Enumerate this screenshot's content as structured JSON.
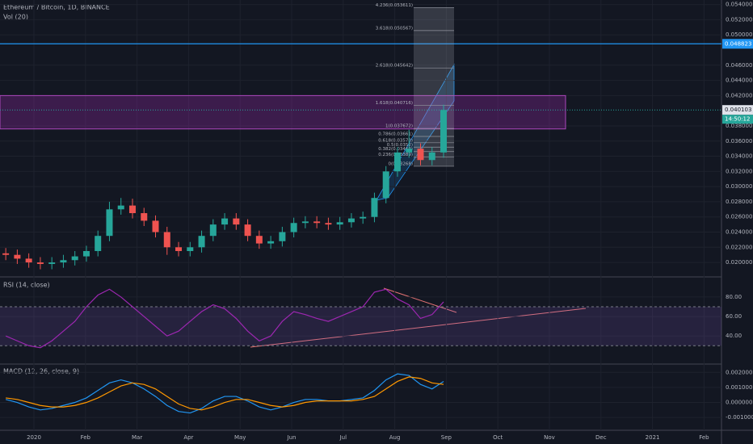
{
  "chart_data": {
    "type": "candlestick",
    "title": "Ethereum / Bitcoin, 1D, BINANCE",
    "volume_label": "Vol (20)",
    "open": [
      0.0212,
      0.021,
      0.0205,
      0.02,
      0.0198,
      0.02,
      0.0203,
      0.0208,
      0.0215,
      0.0235,
      0.027,
      0.0275,
      0.0265,
      0.0255,
      0.024,
      0.022,
      0.0215,
      0.022,
      0.0235,
      0.025,
      0.0258,
      0.025,
      0.0235,
      0.0225,
      0.0228,
      0.024,
      0.0252,
      0.0254,
      0.0252,
      0.025,
      0.0253,
      0.0258,
      0.026,
      0.0285,
      0.032,
      0.0345,
      0.035,
      0.0335,
      0.0345
    ],
    "high": [
      0.0219,
      0.0217,
      0.0212,
      0.0207,
      0.0207,
      0.021,
      0.0215,
      0.0222,
      0.0242,
      0.028,
      0.0285,
      0.0284,
      0.0272,
      0.0262,
      0.0247,
      0.0227,
      0.0227,
      0.0242,
      0.0257,
      0.0265,
      0.0265,
      0.0257,
      0.0242,
      0.0235,
      0.0247,
      0.0259,
      0.0261,
      0.0261,
      0.0259,
      0.026,
      0.0265,
      0.0267,
      0.0292,
      0.0327,
      0.0352,
      0.0375,
      0.0357,
      0.0352,
      0.0408
    ],
    "low": [
      0.0203,
      0.0198,
      0.0193,
      0.0191,
      0.0191,
      0.0193,
      0.0196,
      0.0201,
      0.0208,
      0.0228,
      0.0263,
      0.0258,
      0.0248,
      0.0233,
      0.021,
      0.0208,
      0.0208,
      0.0213,
      0.0228,
      0.0243,
      0.0243,
      0.0228,
      0.0218,
      0.0218,
      0.0221,
      0.0233,
      0.0245,
      0.0245,
      0.0243,
      0.0243,
      0.0246,
      0.0251,
      0.0253,
      0.0278,
      0.0313,
      0.0338,
      0.0328,
      0.0328,
      0.0338
    ],
    "close": [
      0.021,
      0.0205,
      0.02,
      0.0198,
      0.02,
      0.0203,
      0.0208,
      0.0215,
      0.0235,
      0.027,
      0.0275,
      0.0265,
      0.0255,
      0.024,
      0.022,
      0.0215,
      0.022,
      0.0235,
      0.025,
      0.0258,
      0.025,
      0.0235,
      0.0225,
      0.0228,
      0.024,
      0.0252,
      0.0254,
      0.0252,
      0.025,
      0.0253,
      0.0258,
      0.026,
      0.0285,
      0.032,
      0.0345,
      0.035,
      0.0335,
      0.0345,
      0.0401
    ],
    "up_color": "#26a69a",
    "down_color": "#ef5350",
    "ylim": [
      0.0182,
      0.0546
    ],
    "yticks": [
      {
        "value": 0.02,
        "label": "0.020000"
      },
      {
        "value": 0.022,
        "label": "0.022000"
      },
      {
        "value": 0.024,
        "label": "0.024000"
      },
      {
        "value": 0.026,
        "label": "0.026000"
      },
      {
        "value": 0.028,
        "label": "0.028000"
      },
      {
        "value": 0.03,
        "label": "0.030000"
      },
      {
        "value": 0.032,
        "label": "0.032000"
      },
      {
        "value": 0.034,
        "label": "0.034000"
      },
      {
        "value": 0.036,
        "label": "0.036000"
      },
      {
        "value": 0.038,
        "label": "0.038000"
      },
      {
        "value": 0.042,
        "label": "0.042000"
      },
      {
        "value": 0.044,
        "label": "0.044000"
      },
      {
        "value": 0.046,
        "label": "0.046000"
      },
      {
        "value": 0.05,
        "label": "0.050000"
      },
      {
        "value": 0.052,
        "label": "0.052000"
      },
      {
        "value": 0.054,
        "label": "0.054000"
      }
    ],
    "resistance": 0.048823,
    "last_price": 0.040103,
    "countdown": "14:50:12",
    "zone": [
      0.0376,
      0.042
    ],
    "fib_levels": [
      {
        "value": 0.053611,
        "label": "4.236(0.053611)"
      },
      {
        "value": 0.050567,
        "label": "3.618(0.050567)"
      },
      {
        "value": 0.045642,
        "label": "2.618(0.045642)"
      },
      {
        "value": 0.040716,
        "label": "1.618(0.040716)"
      },
      {
        "value": 0.037672,
        "label": "1(0.037672)"
      },
      {
        "value": 0.03661,
        "label": "0.786(0.03661)"
      },
      {
        "value": 0.03578,
        "label": "0.618(0.03578)"
      },
      {
        "value": 0.0352,
        "label": "0.5(0.0352)"
      },
      {
        "value": 0.03462,
        "label": "0.382(0.03462)"
      },
      {
        "value": 0.03389,
        "label": "0.236(0.03389)"
      },
      {
        "value": 0.03268,
        "label": "0(0.03268)"
      }
    ],
    "months": [
      "2020",
      "Feb",
      "Mar",
      "Apr",
      "May",
      "Jun",
      "Jul",
      "Aug",
      "Sep",
      "Oct",
      "Nov",
      "Dec",
      "2021",
      "Feb"
    ],
    "rsi": {
      "label": "RSI (14, close)",
      "color": "#9c27b0",
      "values": [
        40,
        35,
        30,
        28,
        35,
        45,
        55,
        70,
        82,
        88,
        80,
        70,
        60,
        50,
        40,
        45,
        55,
        65,
        72,
        68,
        58,
        45,
        35,
        40,
        55,
        65,
        62,
        58,
        55,
        60,
        65,
        70,
        85,
        88,
        78,
        72,
        58,
        62,
        75
      ],
      "ylim": [
        12,
        99
      ],
      "yticks": [
        {
          "value": 80,
          "label": "80.00"
        },
        {
          "value": 60,
          "label": "60.00"
        },
        {
          "value": 40,
          "label": "40.00"
        }
      ],
      "bands": [
        30,
        70
      ]
    },
    "macd": {
      "label": "MACD (12, 26, close, 9)",
      "ylim": [
        -0.0018,
        0.0025
      ],
      "yticks": [
        {
          "value": 0.002,
          "label": "0.002000"
        },
        {
          "value": 0.001,
          "label": "0.001000"
        },
        {
          "value": 0,
          "label": "0.000000"
        },
        {
          "value": -0.001,
          "label": "-0.001000"
        }
      ],
      "series": [
        {
          "name": "MACD",
          "color": "#2196f3",
          "values": [
            0.0002,
            0.0,
            -0.0003,
            -0.0005,
            -0.0004,
            -0.0002,
            0.0,
            0.0003,
            0.0008,
            0.0013,
            0.0015,
            0.0013,
            0.0009,
            0.0004,
            -0.0002,
            -0.0006,
            -0.0007,
            -0.0004,
            0.0001,
            0.0004,
            0.0004,
            0.0001,
            -0.0003,
            -0.0005,
            -0.0003,
            0.0,
            0.0002,
            0.0002,
            0.0001,
            0.0001,
            0.0002,
            0.0003,
            0.0008,
            0.0015,
            0.0019,
            0.0018,
            0.0012,
            0.0009,
            0.0014
          ]
        },
        {
          "name": "Signal",
          "color": "#ff9800",
          "values": [
            0.0003,
            0.0002,
            0.0,
            -0.0002,
            -0.0003,
            -0.0003,
            -0.0002,
            0.0,
            0.0003,
            0.0007,
            0.0011,
            0.0013,
            0.0012,
            0.0009,
            0.0004,
            -0.0001,
            -0.0004,
            -0.0005,
            -0.0003,
            0.0,
            0.0002,
            0.0002,
            0.0,
            -0.0002,
            -0.0003,
            -0.0002,
            0.0,
            0.0001,
            0.0001,
            0.0001,
            0.0001,
            0.0002,
            0.0004,
            0.0009,
            0.0014,
            0.0017,
            0.0016,
            0.0013,
            0.0012
          ]
        }
      ]
    }
  }
}
